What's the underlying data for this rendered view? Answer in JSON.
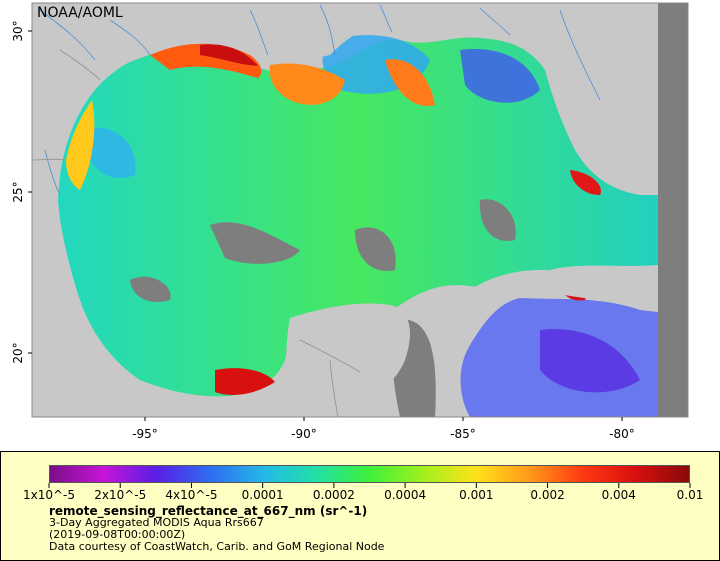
{
  "credit": "NOAA/AOML",
  "map": {
    "lon_ticks": [
      "-95°",
      "-90°",
      "-85°",
      "-80°"
    ],
    "lat_ticks": [
      "30°",
      "25°",
      "20°"
    ],
    "colors": {
      "land": "#c8c8c8",
      "no_data": "#7e7e7e",
      "borders": "#909090",
      "rivers": "#4c8fd6"
    }
  },
  "legend": {
    "scale_labels": [
      "1x10^-5",
      "2x10^-5",
      "4x10^-5",
      "0.0001",
      "0.0002",
      "0.0004",
      "0.001",
      "0.002",
      "0.004",
      "0.01"
    ],
    "title": "remote_sensing_reflectance_at_667_nm (sr^-1)",
    "line1": "3-Day Aggregated MODIS Aqua Rrs667",
    "line2": "(2019-09-08T00:00:00Z)",
    "line3": "Data courtesy of CoastWatch, Carib. and GoM Regional Node",
    "colormap": [
      "#7a0e8a",
      "#c614d6",
      "#5a1ee6",
      "#2f6cf0",
      "#24b8e8",
      "#22e0a6",
      "#3ef03a",
      "#a0f01e",
      "#ffe21a",
      "#ff9a1a",
      "#ff3a10",
      "#d80f0f",
      "#8a0a0a"
    ],
    "background": "#ffffc4"
  }
}
